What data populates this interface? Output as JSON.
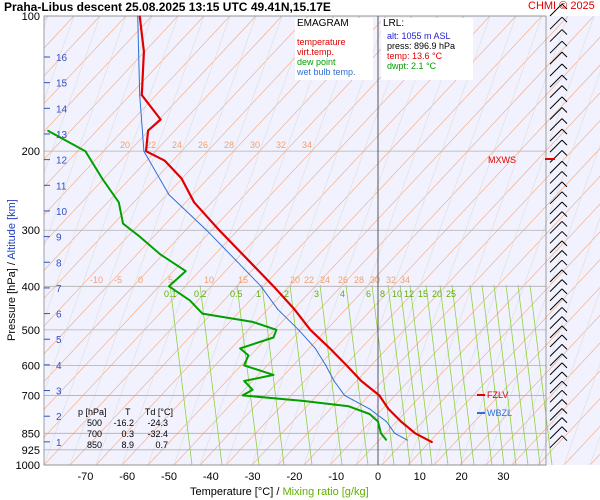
{
  "header": {
    "station": "Praha-Libus  descent",
    "datetime": "25.08.2025 13:15 UTC",
    "coords": "49.41N,15.17E",
    "credit": "CHMI © 2025"
  },
  "legend": {
    "title": "EMAGRAM",
    "items": [
      {
        "label": "temperature",
        "color": "#e00000"
      },
      {
        "label": "virt.temp.",
        "color": "#e00000"
      },
      {
        "label": "dew point",
        "color": "#00a000"
      },
      {
        "label": "wet bulb temp.",
        "color": "#3070d0"
      }
    ]
  },
  "lrl": {
    "title": "LRL:",
    "alt": "alt: 1055 m ASL",
    "press": "press: 896.9 hPa",
    "temp": "temp: 13.6 °C",
    "dwpt": "dwpt: 2.1 °C"
  },
  "table": {
    "headers": [
      "p [hPa]",
      "T",
      "Td [°C]"
    ],
    "rows": [
      [
        "500",
        "-16.2",
        "-24.3"
      ],
      [
        "700",
        "0.3",
        "-32.4"
      ],
      [
        "850",
        "8.9",
        "0.7"
      ]
    ]
  },
  "axis_labels": {
    "x_temp": "Temperature [°C]",
    "x_sep": "/",
    "x_mix": "Mixing ratio [g/kg]",
    "y_press": "Pressure [hPa]",
    "y_sep": "/",
    "y_alt": "Altitude [km]"
  },
  "markers": {
    "mxws": "MXWS",
    "fzlv": "FZLV",
    "wbzl": "WBZL"
  },
  "colors": {
    "background": "#f2f2ff",
    "temperature": "#e00000",
    "dewpoint": "#00a000",
    "wetbulb": "#3070d0",
    "dry_adiabat": "#f3b08c",
    "moist_adiabat": "#dcdcdc",
    "mixing_ratio": "#90d040",
    "altitude": "#3050c0",
    "isobar": "#b0b0b0"
  },
  "chart_data": {
    "type": "line",
    "title": "EMAGRAM",
    "xlabel": "Temperature [°C]",
    "ylabel": "Pressure [hPa]",
    "x_ticks": [
      -70,
      -60,
      -50,
      -40,
      -30,
      -20,
      -10,
      0,
      10,
      20,
      30
    ],
    "y_ticks": [
      100,
      200,
      300,
      400,
      500,
      600,
      700,
      850,
      925,
      1000
    ],
    "y_scale": "log",
    "altitude_ticks_km": [
      1,
      2,
      3,
      4,
      5,
      6,
      7,
      8,
      9,
      10,
      11,
      12,
      13,
      14,
      15,
      16
    ],
    "dry_adiabat_labels": [
      "20",
      "22",
      "24",
      "26",
      "28",
      "30",
      "32",
      "34"
    ],
    "theta_e_labels": [
      "-10",
      "-5",
      "0",
      "5",
      "10",
      "15",
      "20",
      "22",
      "24",
      "26",
      "28",
      "30",
      "32",
      "34"
    ],
    "mixing_ratio_labels": [
      "0.1",
      "0.2",
      "0.5",
      "1",
      "2",
      "3",
      "4",
      "6",
      "8",
      "10",
      "12",
      "15",
      "20",
      "25"
    ],
    "series": [
      {
        "name": "temperature",
        "points": [
          [
            100,
            -57
          ],
          [
            120,
            -56
          ],
          [
            150,
            -56.5
          ],
          [
            170,
            -52
          ],
          [
            180,
            -55
          ],
          [
            200,
            -55.5
          ],
          [
            210,
            -51
          ],
          [
            230,
            -47
          ],
          [
            260,
            -44
          ],
          [
            300,
            -38
          ],
          [
            350,
            -31
          ],
          [
            400,
            -25
          ],
          [
            450,
            -20
          ],
          [
            500,
            -16.2
          ],
          [
            550,
            -11.5
          ],
          [
            600,
            -7.5
          ],
          [
            650,
            -4
          ],
          [
            700,
            0.3
          ],
          [
            750,
            2.5
          ],
          [
            800,
            5.5
          ],
          [
            850,
            8.9
          ],
          [
            890,
            13
          ]
        ]
      },
      {
        "name": "dew point",
        "points": [
          [
            180,
            -79
          ],
          [
            200,
            -70
          ],
          [
            230,
            -66
          ],
          [
            260,
            -62
          ],
          [
            290,
            -61
          ],
          [
            310,
            -57
          ],
          [
            340,
            -52
          ],
          [
            370,
            -46
          ],
          [
            400,
            -50
          ],
          [
            430,
            -45
          ],
          [
            460,
            -42
          ],
          [
            480,
            -30
          ],
          [
            500,
            -24.3
          ],
          [
            520,
            -25
          ],
          [
            550,
            -33
          ],
          [
            570,
            -31
          ],
          [
            600,
            -32
          ],
          [
            630,
            -25
          ],
          [
            650,
            -32
          ],
          [
            680,
            -30
          ],
          [
            700,
            -32.4
          ],
          [
            720,
            -18
          ],
          [
            740,
            -7
          ],
          [
            770,
            -2
          ],
          [
            800,
            0
          ],
          [
            850,
            0.7
          ],
          [
            880,
            2
          ]
        ]
      },
      {
        "name": "wet bulb temp.",
        "points": [
          [
            100,
            -57.5
          ],
          [
            150,
            -57
          ],
          [
            200,
            -56
          ],
          [
            250,
            -50
          ],
          [
            300,
            -41
          ],
          [
            350,
            -34
          ],
          [
            400,
            -28
          ],
          [
            450,
            -24
          ],
          [
            500,
            -19
          ],
          [
            550,
            -15
          ],
          [
            600,
            -12.5
          ],
          [
            650,
            -10.5
          ],
          [
            700,
            -8
          ],
          [
            750,
            -2
          ],
          [
            800,
            2
          ],
          [
            850,
            4
          ],
          [
            880,
            7
          ]
        ]
      }
    ],
    "wind_barbs": "right column, 100–1000 hPa"
  }
}
